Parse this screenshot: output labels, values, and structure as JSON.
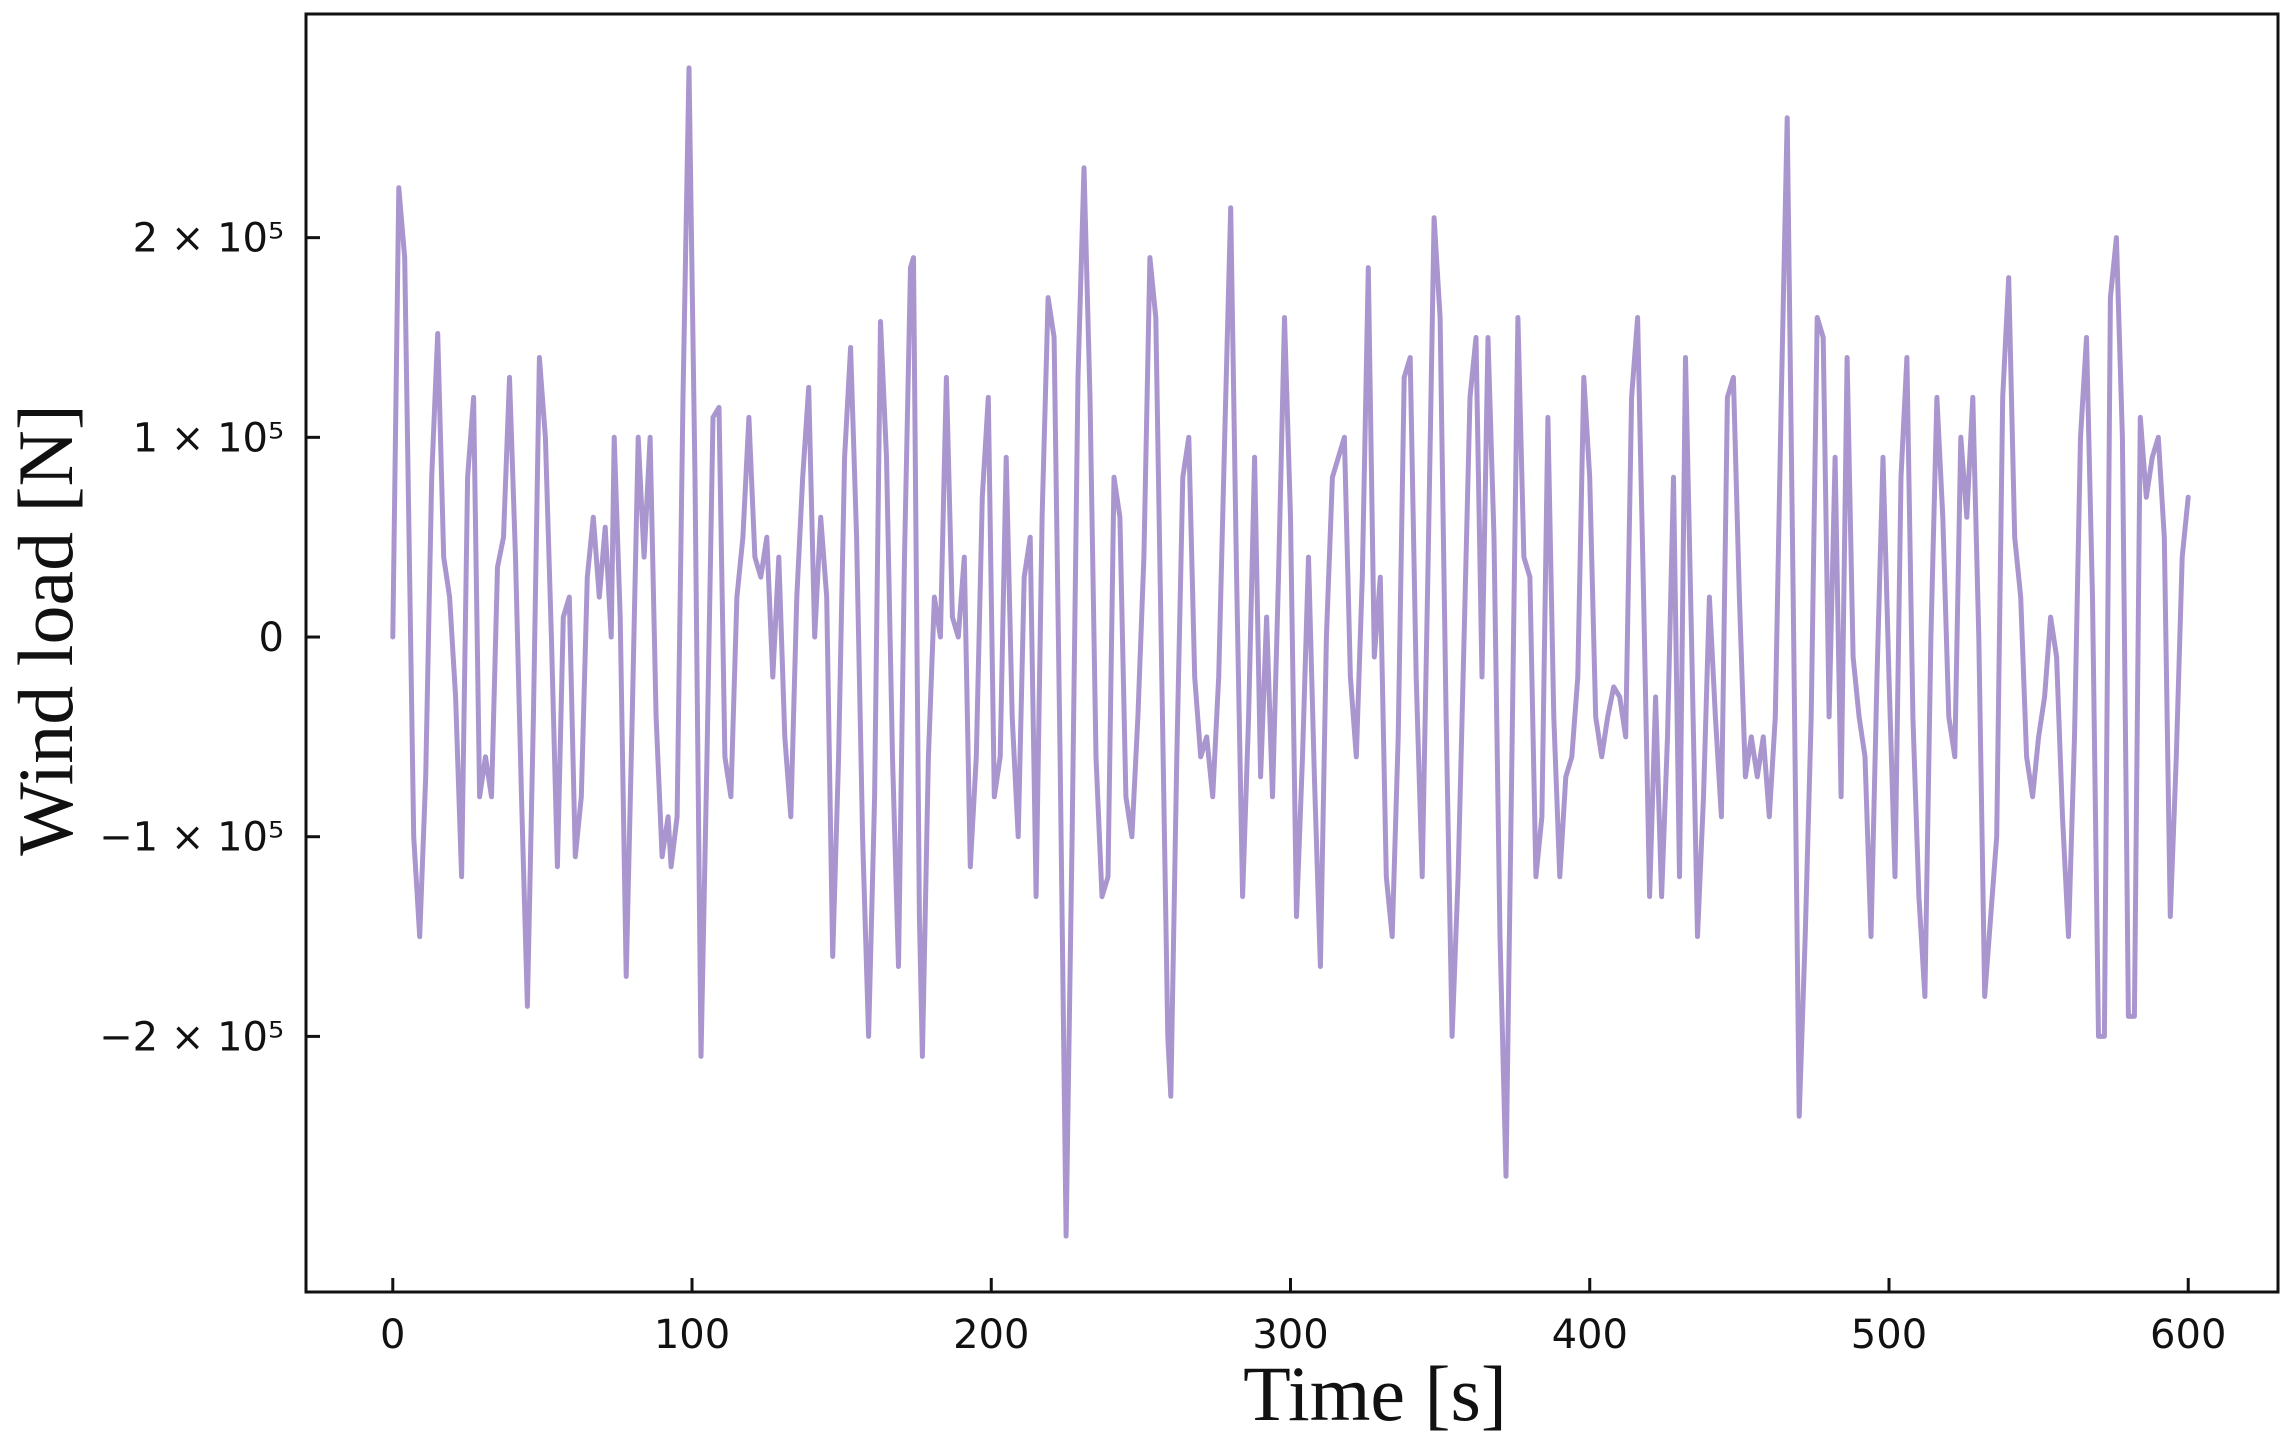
{
  "chart_data": {
    "type": "line",
    "title": "",
    "xlabel": "Time [s]",
    "ylabel": "Wind load [N]",
    "xlim": [
      -29,
      630
    ],
    "ylim": [
      -328000.0,
      312000.0
    ],
    "x_ticks": [
      {
        "value": 0,
        "label": "0"
      },
      {
        "value": 100,
        "label": "100"
      },
      {
        "value": 200,
        "label": "200"
      },
      {
        "value": 300,
        "label": "300"
      },
      {
        "value": 400,
        "label": "400"
      },
      {
        "value": 500,
        "label": "500"
      },
      {
        "value": 600,
        "label": "600"
      }
    ],
    "y_ticks": [
      {
        "value": 200000,
        "label": "2 × 10⁵"
      },
      {
        "value": 100000,
        "label": "1 × 10⁵"
      },
      {
        "value": 0,
        "label": "0"
      },
      {
        "value": -100000,
        "label": "−1 × 10⁵"
      },
      {
        "value": -200000,
        "label": "−2 × 10⁵"
      }
    ],
    "grid": false,
    "legend": "none",
    "series": [
      {
        "color": "#a996cf",
        "points": [
          [
            0,
            0
          ],
          [
            2,
            225000
          ],
          [
            4,
            190000
          ],
          [
            7,
            -100000
          ],
          [
            9,
            -150000
          ],
          [
            11,
            -70000
          ],
          [
            13,
            80000
          ],
          [
            15,
            152000
          ],
          [
            17,
            40000
          ],
          [
            19,
            20000
          ],
          [
            21,
            -30000
          ],
          [
            23,
            -120000
          ],
          [
            25,
            80000
          ],
          [
            27,
            120000
          ],
          [
            29,
            -80000
          ],
          [
            31,
            -60000
          ],
          [
            33,
            -80000
          ],
          [
            35,
            35000
          ],
          [
            37,
            50000
          ],
          [
            39,
            130000
          ],
          [
            41,
            40000
          ],
          [
            43,
            -80000
          ],
          [
            45,
            -185000
          ],
          [
            47,
            -40000
          ],
          [
            49,
            140000
          ],
          [
            51,
            100000
          ],
          [
            53,
            0
          ],
          [
            55,
            -115000
          ],
          [
            57,
            10000
          ],
          [
            59,
            20000
          ],
          [
            61,
            -110000
          ],
          [
            63,
            -80000
          ],
          [
            65,
            30000
          ],
          [
            67,
            60000
          ],
          [
            69,
            20000
          ],
          [
            71,
            55000
          ],
          [
            73,
            0
          ],
          [
            74,
            100000
          ],
          [
            76,
            10000
          ],
          [
            78,
            -170000
          ],
          [
            80,
            -40000
          ],
          [
            82,
            100000
          ],
          [
            84,
            40000
          ],
          [
            86,
            100000
          ],
          [
            88,
            -40000
          ],
          [
            90,
            -110000
          ],
          [
            92,
            -90000
          ],
          [
            93,
            -115000
          ],
          [
            95,
            -90000
          ],
          [
            97,
            120000
          ],
          [
            99,
            285000
          ],
          [
            101,
            80000
          ],
          [
            103,
            -210000
          ],
          [
            105,
            -60000
          ],
          [
            107,
            110000
          ],
          [
            109,
            115000
          ],
          [
            111,
            -60000
          ],
          [
            113,
            -80000
          ],
          [
            115,
            20000
          ],
          [
            117,
            50000
          ],
          [
            119,
            110000
          ],
          [
            121,
            40000
          ],
          [
            123,
            30000
          ],
          [
            125,
            50000
          ],
          [
            127,
            -20000
          ],
          [
            129,
            40000
          ],
          [
            131,
            -50000
          ],
          [
            133,
            -90000
          ],
          [
            135,
            20000
          ],
          [
            137,
            80000
          ],
          [
            139,
            125000
          ],
          [
            141,
            0
          ],
          [
            143,
            60000
          ],
          [
            145,
            20000
          ],
          [
            147,
            -160000
          ],
          [
            149,
            -60000
          ],
          [
            151,
            90000
          ],
          [
            153,
            145000
          ],
          [
            155,
            50000
          ],
          [
            157,
            -100000
          ],
          [
            159,
            -200000
          ],
          [
            161,
            -80000
          ],
          [
            163,
            158000
          ],
          [
            165,
            90000
          ],
          [
            167,
            -60000
          ],
          [
            169,
            -165000
          ],
          [
            171,
            40000
          ],
          [
            173,
            185000
          ],
          [
            174,
            190000
          ],
          [
            176,
            -140000
          ],
          [
            177,
            -210000
          ],
          [
            179,
            -60000
          ],
          [
            181,
            20000
          ],
          [
            183,
            0
          ],
          [
            185,
            130000
          ],
          [
            187,
            10000
          ],
          [
            189,
            0
          ],
          [
            191,
            40000
          ],
          [
            193,
            -115000
          ],
          [
            195,
            -60000
          ],
          [
            197,
            70000
          ],
          [
            199,
            120000
          ],
          [
            201,
            -80000
          ],
          [
            203,
            -60000
          ],
          [
            205,
            90000
          ],
          [
            207,
            -40000
          ],
          [
            209,
            -100000
          ],
          [
            211,
            30000
          ],
          [
            213,
            50000
          ],
          [
            215,
            -130000
          ],
          [
            217,
            60000
          ],
          [
            219,
            170000
          ],
          [
            221,
            150000
          ],
          [
            223,
            -60000
          ],
          [
            225,
            -300000
          ],
          [
            227,
            -100000
          ],
          [
            229,
            130000
          ],
          [
            231,
            235000
          ],
          [
            233,
            120000
          ],
          [
            235,
            -60000
          ],
          [
            237,
            -130000
          ],
          [
            239,
            -120000
          ],
          [
            241,
            80000
          ],
          [
            243,
            60000
          ],
          [
            245,
            -80000
          ],
          [
            247,
            -100000
          ],
          [
            249,
            -40000
          ],
          [
            251,
            40000
          ],
          [
            253,
            190000
          ],
          [
            255,
            160000
          ],
          [
            257,
            -20000
          ],
          [
            259,
            -200000
          ],
          [
            260,
            -230000
          ],
          [
            262,
            -60000
          ],
          [
            264,
            80000
          ],
          [
            266,
            100000
          ],
          [
            268,
            -20000
          ],
          [
            270,
            -60000
          ],
          [
            272,
            -50000
          ],
          [
            274,
            -80000
          ],
          [
            276,
            -20000
          ],
          [
            278,
            100000
          ],
          [
            280,
            215000
          ],
          [
            282,
            30000
          ],
          [
            284,
            -130000
          ],
          [
            286,
            -40000
          ],
          [
            288,
            90000
          ],
          [
            290,
            -70000
          ],
          [
            292,
            10000
          ],
          [
            294,
            -80000
          ],
          [
            296,
            30000
          ],
          [
            298,
            160000
          ],
          [
            300,
            60000
          ],
          [
            302,
            -140000
          ],
          [
            304,
            -60000
          ],
          [
            306,
            40000
          ],
          [
            308,
            -70000
          ],
          [
            310,
            -165000
          ],
          [
            312,
            0
          ],
          [
            314,
            80000
          ],
          [
            316,
            90000
          ],
          [
            318,
            100000
          ],
          [
            320,
            -20000
          ],
          [
            322,
            -60000
          ],
          [
            324,
            30000
          ],
          [
            326,
            185000
          ],
          [
            328,
            -10000
          ],
          [
            330,
            30000
          ],
          [
            332,
            -120000
          ],
          [
            334,
            -150000
          ],
          [
            336,
            -50000
          ],
          [
            338,
            130000
          ],
          [
            340,
            140000
          ],
          [
            342,
            -20000
          ],
          [
            344,
            -120000
          ],
          [
            346,
            40000
          ],
          [
            348,
            210000
          ],
          [
            350,
            160000
          ],
          [
            352,
            -40000
          ],
          [
            354,
            -200000
          ],
          [
            356,
            -120000
          ],
          [
            358,
            0
          ],
          [
            360,
            120000
          ],
          [
            362,
            150000
          ],
          [
            364,
            -20000
          ],
          [
            366,
            150000
          ],
          [
            368,
            50000
          ],
          [
            370,
            -150000
          ],
          [
            372,
            -270000
          ],
          [
            374,
            -60000
          ],
          [
            376,
            160000
          ],
          [
            378,
            40000
          ],
          [
            380,
            30000
          ],
          [
            382,
            -120000
          ],
          [
            384,
            -90000
          ],
          [
            386,
            110000
          ],
          [
            388,
            -40000
          ],
          [
            390,
            -120000
          ],
          [
            392,
            -70000
          ],
          [
            394,
            -60000
          ],
          [
            396,
            -20000
          ],
          [
            398,
            130000
          ],
          [
            400,
            80000
          ],
          [
            402,
            -40000
          ],
          [
            404,
            -60000
          ],
          [
            406,
            -40000
          ],
          [
            408,
            -25000
          ],
          [
            410,
            -30000
          ],
          [
            412,
            -50000
          ],
          [
            414,
            120000
          ],
          [
            416,
            160000
          ],
          [
            418,
            20000
          ],
          [
            420,
            -130000
          ],
          [
            422,
            -30000
          ],
          [
            424,
            -130000
          ],
          [
            426,
            -50000
          ],
          [
            428,
            80000
          ],
          [
            430,
            -120000
          ],
          [
            432,
            140000
          ],
          [
            434,
            0
          ],
          [
            436,
            -150000
          ],
          [
            438,
            -80000
          ],
          [
            440,
            20000
          ],
          [
            442,
            -40000
          ],
          [
            444,
            -90000
          ],
          [
            446,
            120000
          ],
          [
            448,
            130000
          ],
          [
            450,
            20000
          ],
          [
            452,
            -70000
          ],
          [
            454,
            -50000
          ],
          [
            456,
            -70000
          ],
          [
            458,
            -50000
          ],
          [
            460,
            -90000
          ],
          [
            462,
            -40000
          ],
          [
            464,
            120000
          ],
          [
            466,
            260000
          ],
          [
            468,
            20000
          ],
          [
            470,
            -240000
          ],
          [
            472,
            -150000
          ],
          [
            474,
            -40000
          ],
          [
            476,
            160000
          ],
          [
            478,
            150000
          ],
          [
            480,
            -40000
          ],
          [
            482,
            90000
          ],
          [
            484,
            -80000
          ],
          [
            486,
            140000
          ],
          [
            488,
            -10000
          ],
          [
            490,
            -40000
          ],
          [
            492,
            -60000
          ],
          [
            494,
            -150000
          ],
          [
            496,
            -20000
          ],
          [
            498,
            90000
          ],
          [
            500,
            -20000
          ],
          [
            502,
            -120000
          ],
          [
            504,
            80000
          ],
          [
            506,
            140000
          ],
          [
            508,
            -40000
          ],
          [
            510,
            -130000
          ],
          [
            512,
            -180000
          ],
          [
            514,
            0
          ],
          [
            516,
            120000
          ],
          [
            518,
            60000
          ],
          [
            520,
            -40000
          ],
          [
            522,
            -60000
          ],
          [
            524,
            100000
          ],
          [
            526,
            60000
          ],
          [
            528,
            120000
          ],
          [
            530,
            0
          ],
          [
            532,
            -180000
          ],
          [
            534,
            -140000
          ],
          [
            536,
            -100000
          ],
          [
            538,
            120000
          ],
          [
            540,
            180000
          ],
          [
            542,
            50000
          ],
          [
            544,
            20000
          ],
          [
            546,
            -60000
          ],
          [
            548,
            -80000
          ],
          [
            550,
            -50000
          ],
          [
            552,
            -30000
          ],
          [
            554,
            10000
          ],
          [
            556,
            -10000
          ],
          [
            558,
            -90000
          ],
          [
            560,
            -150000
          ],
          [
            562,
            -50000
          ],
          [
            564,
            100000
          ],
          [
            566,
            150000
          ],
          [
            568,
            20000
          ],
          [
            570,
            -200000
          ],
          [
            572,
            -200000
          ],
          [
            574,
            170000
          ],
          [
            576,
            200000
          ],
          [
            578,
            100000
          ],
          [
            580,
            -190000
          ],
          [
            582,
            -190000
          ],
          [
            584,
            110000
          ],
          [
            586,
            70000
          ],
          [
            588,
            90000
          ],
          [
            590,
            100000
          ],
          [
            592,
            50000
          ],
          [
            594,
            -140000
          ],
          [
            596,
            -60000
          ],
          [
            598,
            40000
          ],
          [
            600,
            70000
          ]
        ]
      }
    ]
  }
}
